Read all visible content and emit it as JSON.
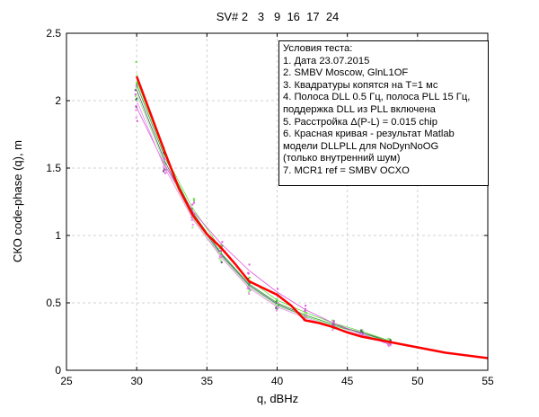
{
  "chart_data": {
    "type": "line",
    "title": "SV# 2   3   9  16  17  24",
    "xlabel": "q, dBHz",
    "ylabel": "СКО code-phase (q), m",
    "xlim": [
      25,
      55
    ],
    "ylim": [
      0,
      2.5
    ],
    "xticks": [
      25,
      30,
      35,
      40,
      45,
      50,
      55
    ],
    "yticks": [
      0,
      0.5,
      1,
      1.5,
      2,
      2.5
    ],
    "xtick_labels": [
      "25",
      "30",
      "35",
      "40",
      "45",
      "50",
      "55"
    ],
    "ytick_labels": [
      "0",
      "0.5",
      "1",
      "1.5",
      "2",
      "2.5"
    ],
    "grid": true,
    "legend_position": "top-right",
    "legend_lines": [
      "Условия теста:",
      "1. Дата 23.07.2015",
      "2. SMBV Moscow, GlnL1OF",
      "3. Квадратуры копятся на T=1 мс",
      "4. Полоса DLL 0.5 Гц, полоса PLL 15 Гц,",
      "поддержка DLL из PLL включена",
      "5. Расстройка Δ(P-L) = 0.015 chip",
      "6. Красная кривая - результат Matlab",
      "модели DLLPLL для NoDynNoOG",
      "(только внутренний шум)",
      "7. MCR1 ref = SMBV OCXO"
    ],
    "model": {
      "name": "Matlab DLLPLL NoDynNoOG",
      "color": "#ff0000",
      "x": [
        30,
        31,
        32,
        33,
        34,
        35,
        36,
        37,
        38,
        39,
        40,
        41,
        42,
        43,
        44,
        45,
        46,
        47,
        48,
        50,
        52,
        55
      ],
      "y": [
        2.18,
        1.9,
        1.62,
        1.35,
        1.15,
        1.01,
        0.91,
        0.79,
        0.66,
        0.61,
        0.56,
        0.48,
        0.37,
        0.35,
        0.32,
        0.28,
        0.25,
        0.23,
        0.21,
        0.17,
        0.13,
        0.09
      ]
    },
    "series": [
      {
        "name": "SV 2",
        "color": "#2ca02c",
        "x": [
          30,
          32,
          34,
          36,
          38,
          40,
          42,
          44,
          46,
          48
        ],
        "y": [
          2.12,
          1.58,
          1.17,
          0.87,
          0.64,
          0.5,
          0.41,
          0.34,
          0.28,
          0.22
        ]
      },
      {
        "name": "SV 3",
        "color": "#66dd44",
        "x": [
          30,
          32,
          34,
          36,
          38,
          40,
          42,
          44,
          46,
          48
        ],
        "y": [
          2.15,
          1.6,
          1.2,
          0.9,
          0.67,
          0.52,
          0.43,
          0.35,
          0.29,
          0.22
        ]
      },
      {
        "name": "SV 9",
        "color": "#555577",
        "x": [
          30,
          32,
          34,
          36,
          38,
          40,
          42,
          44,
          46,
          48
        ],
        "y": [
          2.08,
          1.55,
          1.15,
          0.86,
          0.63,
          0.49,
          0.4,
          0.33,
          0.28,
          0.21
        ]
      },
      {
        "name": "SV 16",
        "color": "#99ee88",
        "x": [
          30,
          32,
          34,
          36,
          38,
          40,
          42,
          44,
          46,
          48
        ],
        "y": [
          2.05,
          1.53,
          1.13,
          0.85,
          0.62,
          0.48,
          0.4,
          0.33,
          0.27,
          0.21
        ]
      },
      {
        "name": "SV 17",
        "color": "#dd55dd",
        "x": [
          30,
          32,
          34,
          36,
          38,
          40,
          42,
          44,
          46,
          48
        ],
        "y": [
          1.95,
          1.52,
          1.18,
          0.94,
          0.74,
          0.58,
          0.45,
          0.35,
          0.27,
          0.19
        ]
      },
      {
        "name": "SV 24",
        "color": "#ee88ee",
        "x": [
          30,
          32,
          34,
          36,
          38,
          40,
          42,
          44,
          46,
          48
        ],
        "y": [
          2.0,
          1.5,
          1.12,
          0.84,
          0.61,
          0.47,
          0.39,
          0.32,
          0.26,
          0.2
        ]
      }
    ]
  }
}
